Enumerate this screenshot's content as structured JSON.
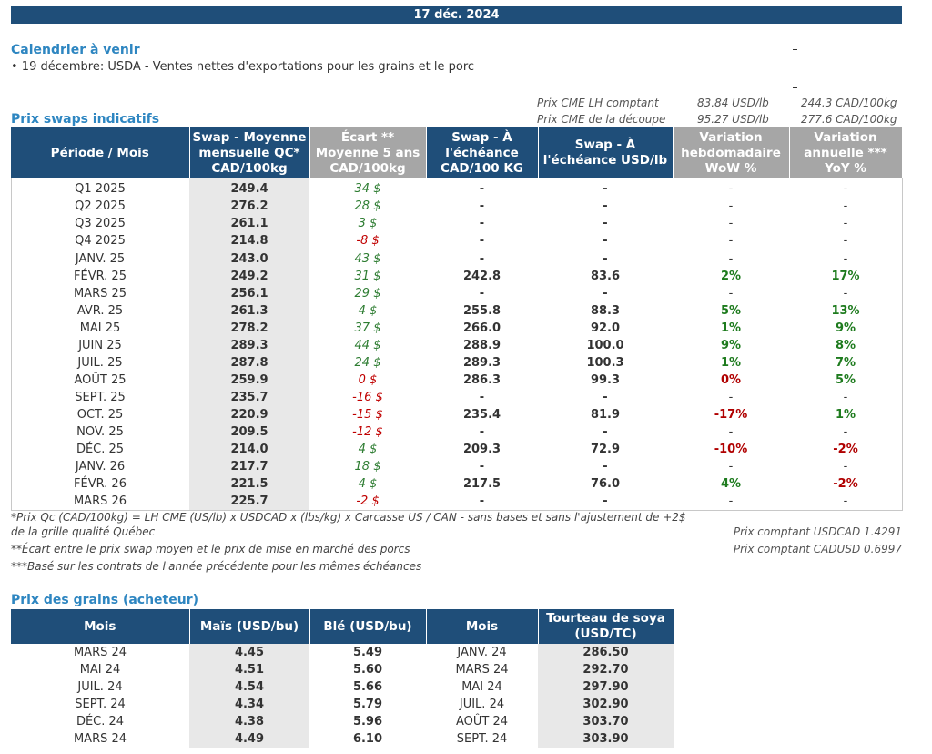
{
  "date": "17 déc. 2024",
  "calendar": {
    "title": "Calendrier à venir",
    "item": "• 19 décembre: USDA - Ventes nettes d'exportations pour les grains et le porc"
  },
  "cme": {
    "lh_label": "Prix CME LH comptant",
    "lh_usd": "83.84 USD/lb",
    "lh_cad": "244.3 CAD/100kg",
    "cut_label": "Prix CME de la découpe",
    "cut_usd": "95.27 USD/lb",
    "cut_cad": "277.6 CAD/100kg"
  },
  "swaps": {
    "title": "Prix swaps indicatifs",
    "headers": [
      "Période / Mois",
      "Swap - Moyenne mensuelle QC* CAD/100kg",
      "Écart ** Moyenne 5 ans CAD/100kg",
      "Swap - À l'échéance CAD/100 KG",
      "Swap - À l'échéance USD/lb",
      "Variation hebdomadaire WoW %",
      "Variation annuelle *** YoY %"
    ],
    "rows": [
      {
        "period": "Q1 2025",
        "swap": "249.4",
        "ecart": "34 $",
        "ecart_sign": "pos",
        "cad": "-",
        "usd": "-",
        "wow": "-",
        "yoy": "-"
      },
      {
        "period": "Q2 2025",
        "swap": "276.2",
        "ecart": "28 $",
        "ecart_sign": "pos",
        "cad": "-",
        "usd": "-",
        "wow": "-",
        "yoy": "-"
      },
      {
        "period": "Q3 2025",
        "swap": "261.1",
        "ecart": "3 $",
        "ecart_sign": "pos",
        "cad": "-",
        "usd": "-",
        "wow": "-",
        "yoy": "-"
      },
      {
        "period": "Q4 2025",
        "swap": "214.8",
        "ecart": "-8 $",
        "ecart_sign": "neg",
        "cad": "-",
        "usd": "-",
        "wow": "-",
        "yoy": "-"
      },
      {
        "period": "JANV. 25",
        "swap": "243.0",
        "ecart": "43 $",
        "ecart_sign": "pos",
        "cad": "-",
        "usd": "-",
        "wow": "-",
        "yoy": "-"
      },
      {
        "period": "FÉVR. 25",
        "swap": "249.2",
        "ecart": "31 $",
        "ecart_sign": "pos",
        "cad": "242.8",
        "usd": "83.6",
        "wow": "2%",
        "yoy": "17%"
      },
      {
        "period": "MARS 25",
        "swap": "256.1",
        "ecart": "29 $",
        "ecart_sign": "pos",
        "cad": "-",
        "usd": "-",
        "wow": "-",
        "yoy": "-"
      },
      {
        "period": "AVR. 25",
        "swap": "261.3",
        "ecart": "4 $",
        "ecart_sign": "pos",
        "cad": "255.8",
        "usd": "88.3",
        "wow": "5%",
        "yoy": "13%"
      },
      {
        "period": "MAI 25",
        "swap": "278.2",
        "ecart": "37 $",
        "ecart_sign": "pos",
        "cad": "266.0",
        "usd": "92.0",
        "wow": "1%",
        "yoy": "9%"
      },
      {
        "period": "JUIN 25",
        "swap": "289.3",
        "ecart": "44 $",
        "ecart_sign": "pos",
        "cad": "288.9",
        "usd": "100.0",
        "wow": "9%",
        "yoy": "8%"
      },
      {
        "period": "JUIL. 25",
        "swap": "287.8",
        "ecart": "24 $",
        "ecart_sign": "pos",
        "cad": "289.3",
        "usd": "100.3",
        "wow": "1%",
        "yoy": "7%"
      },
      {
        "period": "AOÛT 25",
        "swap": "259.9",
        "ecart": "0 $",
        "ecart_sign": "neg",
        "cad": "286.3",
        "usd": "99.3",
        "wow": "0%",
        "yoy": "5%"
      },
      {
        "period": "SEPT. 25",
        "swap": "235.7",
        "ecart": "-16 $",
        "ecart_sign": "neg",
        "cad": "-",
        "usd": "-",
        "wow": "-",
        "yoy": "-"
      },
      {
        "period": "OCT. 25",
        "swap": "220.9",
        "ecart": "-15 $",
        "ecart_sign": "neg",
        "cad": "235.4",
        "usd": "81.9",
        "wow": "-17%",
        "yoy": "1%"
      },
      {
        "period": "NOV. 25",
        "swap": "209.5",
        "ecart": "-12 $",
        "ecart_sign": "neg",
        "cad": "-",
        "usd": "-",
        "wow": "-",
        "yoy": "-"
      },
      {
        "period": "DÉC. 25",
        "swap": "214.0",
        "ecart": "4 $",
        "ecart_sign": "pos",
        "cad": "209.3",
        "usd": "72.9",
        "wow": "-10%",
        "yoy": "-2%"
      },
      {
        "period": "JANV. 26",
        "swap": "217.7",
        "ecart": "18 $",
        "ecart_sign": "pos",
        "cad": "-",
        "usd": "-",
        "wow": "-",
        "yoy": "-"
      },
      {
        "period": "FÉVR. 26",
        "swap": "221.5",
        "ecart": "4 $",
        "ecart_sign": "pos",
        "cad": "217.5",
        "usd": "76.0",
        "wow": "4%",
        "yoy": "-2%"
      },
      {
        "period": "MARS 26",
        "swap": "225.7",
        "ecart": "-2 $",
        "ecart_sign": "neg",
        "cad": "-",
        "usd": "-",
        "wow": "-",
        "yoy": "-"
      }
    ]
  },
  "notes": {
    "n1a": "*Prix Qc (CAD/100kg) = LH CME (US/lb) x USDCAD x (lbs/kg) x Carcasse US / CAN - sans bases et sans l'ajustement de +2$",
    "n1b": "de la grille qualité Québec",
    "n2": "**Écart entre le prix swap moyen et le prix de mise en marché des porcs",
    "n3": "***Basé sur les contrats de l'année précédente pour les mêmes échéances",
    "usdcad": "Prix comptant USDCAD 1.4291",
    "cadusd": "Prix comptant CADUSD 0.6997"
  },
  "grains": {
    "title": "Prix des grains (acheteur)",
    "headers": [
      "Mois",
      "Maïs (USD/bu)",
      "Blé (USD/bu)",
      "Mois",
      "Tourteau de soya (USD/TC)"
    ],
    "rows": [
      {
        "m1": "MARS 24",
        "mais": "4.45",
        "ble": "5.49",
        "m2": "JANV. 24",
        "soya": "286.50"
      },
      {
        "m1": "MAI 24",
        "mais": "4.51",
        "ble": "5.60",
        "m2": "MARS 24",
        "soya": "292.70"
      },
      {
        "m1": "JUIL. 24",
        "mais": "4.54",
        "ble": "5.66",
        "m2": "MAI 24",
        "soya": "297.90"
      },
      {
        "m1": "SEPT. 24",
        "mais": "4.34",
        "ble": "5.79",
        "m2": "JUIL. 24",
        "soya": "302.90"
      },
      {
        "m1": "DÉC. 24",
        "mais": "4.38",
        "ble": "5.96",
        "m2": "AOÛT 24",
        "soya": "303.70"
      },
      {
        "m1": "MARS 24",
        "mais": "4.49",
        "ble": "6.10",
        "m2": "SEPT. 24",
        "soya": "303.90"
      }
    ]
  }
}
